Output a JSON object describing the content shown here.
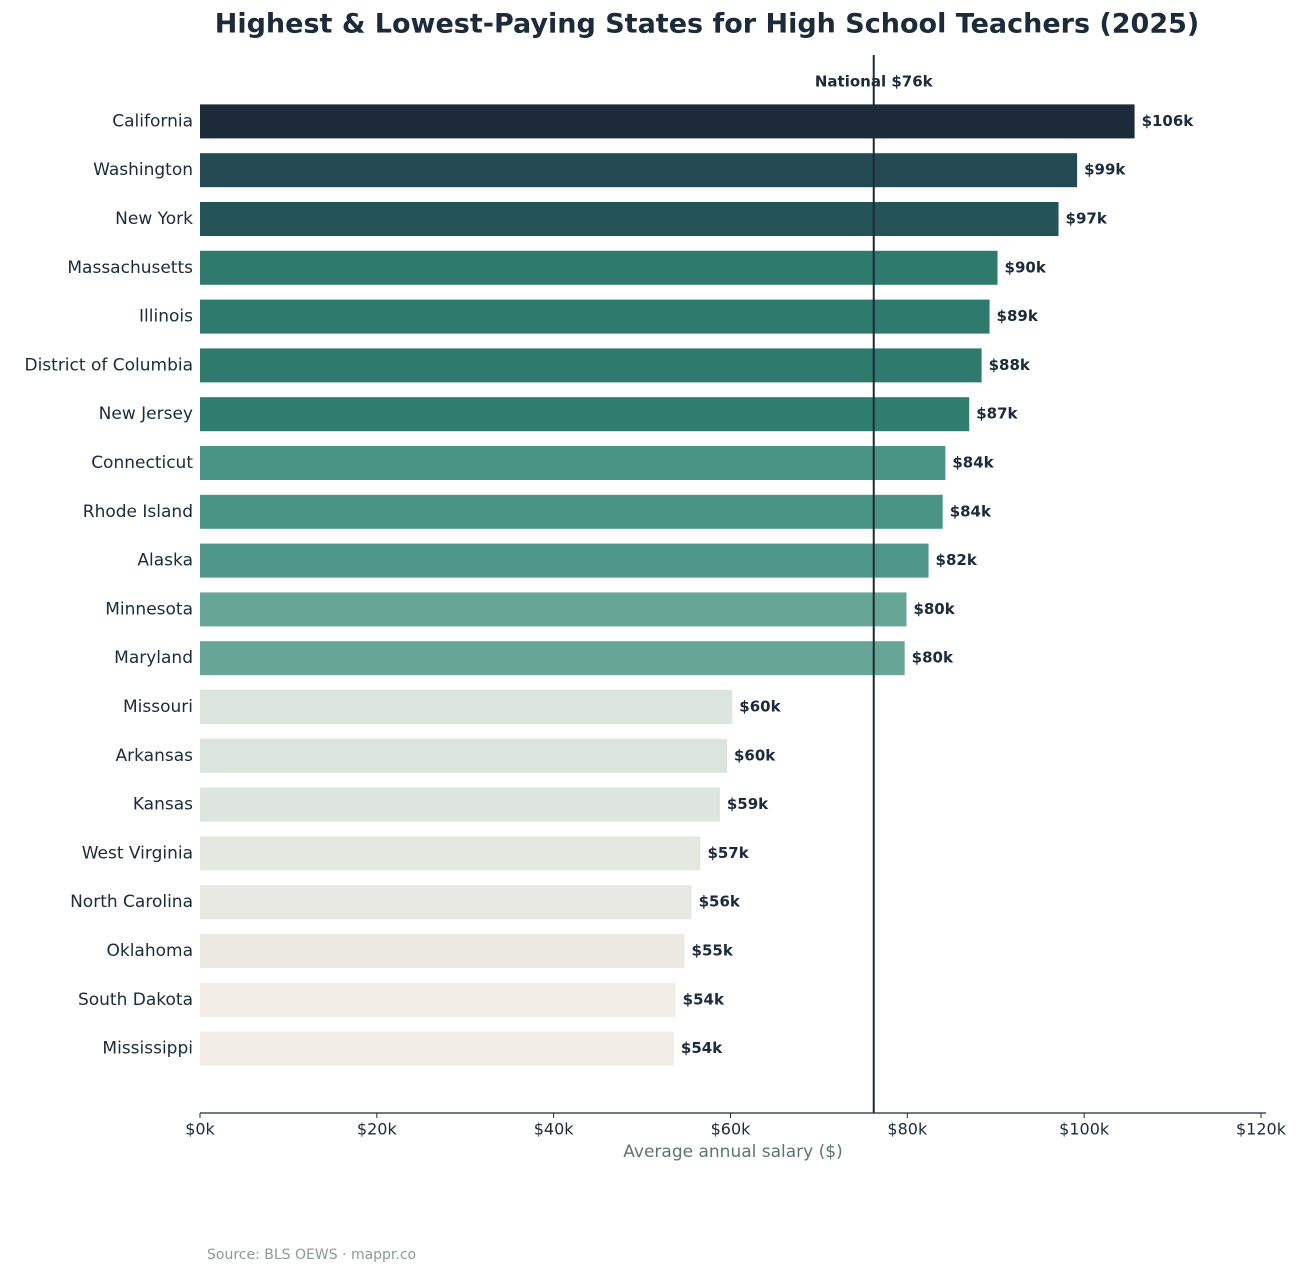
{
  "chart_data": {
    "type": "bar",
    "orientation": "horizontal",
    "title": "Highest & Lowest-Paying States for High School Teachers (2025)",
    "x_label": "Average annual salary ($)",
    "source": "Source: BLS OEWS · mappr.co",
    "categories": [
      "California",
      "Washington",
      "New York",
      "Massachusetts",
      "Illinois",
      "District of Columbia",
      "New Jersey",
      "Connecticut",
      "Rhode Island",
      "Alaska",
      "Minnesota",
      "Maryland",
      "Missouri",
      "Arkansas",
      "Kansas",
      "West Virginia",
      "North Carolina",
      "Oklahoma",
      "South Dakota",
      "Mississippi"
    ],
    "values": [
      105700,
      99200,
      97100,
      90200,
      89300,
      88400,
      87000,
      84300,
      84000,
      82400,
      79900,
      79700,
      60200,
      59600,
      58800,
      56600,
      55600,
      54800,
      53800,
      53600
    ],
    "value_labels": [
      "$106k",
      "$99k",
      "$97k",
      "$90k",
      "$89k",
      "$88k",
      "$87k",
      "$84k",
      "$84k",
      "$82k",
      "$80k",
      "$80k",
      "$60k",
      "$60k",
      "$59k",
      "$57k",
      "$56k",
      "$55k",
      "$54k",
      "$54k"
    ],
    "colors": [
      "#1c2a3a",
      "#234a52",
      "#245457",
      "#2e7a6c",
      "#2e7a6c",
      "#2e7a6c",
      "#2f7d6e",
      "#4a9485",
      "#4a9485",
      "#4f978a",
      "#67a596",
      "#67a596",
      "#dbe5de",
      "#dbe5de",
      "#dde5de",
      "#e5e8e1",
      "#e8e8e2",
      "#ece9e3",
      "#f2ede7",
      "#f2ede7"
    ],
    "xlim": [
      0,
      120000
    ],
    "xticks": [
      {
        "value": 0,
        "label": "$0k"
      },
      {
        "value": 20000,
        "label": "$20k"
      },
      {
        "value": 40000,
        "label": "$40k"
      },
      {
        "value": 60000,
        "label": "$60k"
      },
      {
        "value": 80000,
        "label": "$80k"
      },
      {
        "value": 100000,
        "label": "$100k"
      },
      {
        "value": 120000,
        "label": "$120k"
      }
    ],
    "reference_line": {
      "value": 76200,
      "label": "National $76k",
      "color": "#1c2a3a"
    }
  }
}
